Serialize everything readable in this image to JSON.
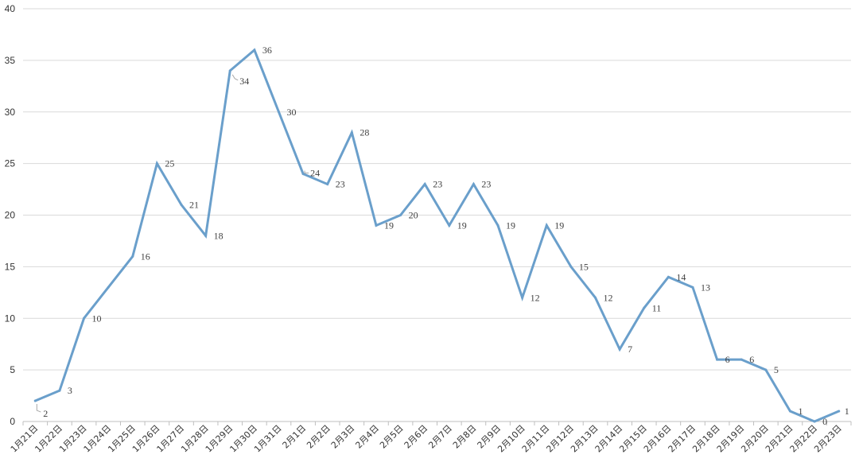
{
  "chart_data": {
    "type": "line",
    "title": "",
    "xlabel": "",
    "ylabel": "",
    "ylim": [
      0,
      40
    ],
    "yticks": [
      0,
      5,
      10,
      15,
      20,
      25,
      30,
      35,
      40
    ],
    "grid": "horizontal",
    "legend": "none",
    "categories": [
      "1月21日",
      "1月22日",
      "1月23日",
      "1月24日",
      "1月25日",
      "1月26日",
      "1月27日",
      "1月28日",
      "1月29日",
      "1月30日",
      "1月31日",
      "2月1日",
      "2月2日",
      "2月3日",
      "2月4日",
      "2月5日",
      "2月6日",
      "2月7日",
      "2月8日",
      "2月9日",
      "2月10日",
      "2月11日",
      "2月12日",
      "2月13日",
      "2月14日",
      "2月15日",
      "2月16日",
      "2月17日",
      "2月18日",
      "2月19日",
      "2月20日",
      "2月21日",
      "2月22日",
      "2月23日"
    ],
    "series": [
      {
        "values": [
          2,
          3,
          10,
          13,
          16,
          25,
          21,
          18,
          34,
          36,
          30,
          24,
          23,
          28,
          19,
          20,
          23,
          19,
          23,
          19,
          12,
          19,
          15,
          12,
          7,
          11,
          14,
          13,
          6,
          6,
          5,
          1,
          0,
          1
        ],
        "color": "#6a9fcb",
        "data_labels": true,
        "hidden_labels": [
          3
        ]
      }
    ]
  }
}
